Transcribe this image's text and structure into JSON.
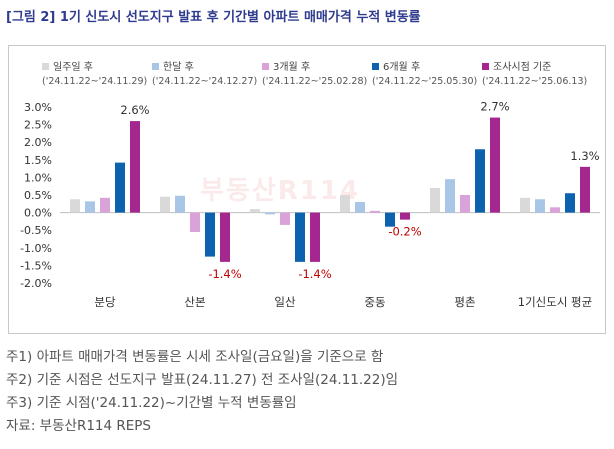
{
  "title": "[그림 2] 1기 신도시 선도지구 발표 후 기간별 아파트 매매가격 누적 변동률",
  "watermark": "부동산R114",
  "chart_data": {
    "type": "bar",
    "categories": [
      "분당",
      "산본",
      "일산",
      "중동",
      "평촌",
      "1기신도시 평균"
    ],
    "series": [
      {
        "name": "일주일 후",
        "period": "('24.11.22~'24.11.29)",
        "color": "#d9d9d9",
        "values": [
          0.38,
          0.45,
          0.1,
          0.5,
          0.7,
          0.42
        ]
      },
      {
        "name": "한달 후",
        "period": "('24.11.22~'24.12.27)",
        "color": "#a9c6e6",
        "values": [
          0.32,
          0.48,
          -0.05,
          0.3,
          0.95,
          0.38
        ]
      },
      {
        "name": "3개월 후",
        "period": "('24.11.22~'25.02.28)",
        "color": "#d9a3d9",
        "values": [
          0.42,
          -0.55,
          -0.35,
          0.05,
          0.5,
          0.15
        ]
      },
      {
        "name": "6개월 후",
        "period": "('24.11.22~'25.05.30)",
        "color": "#0d62b0",
        "values": [
          1.42,
          -1.25,
          -1.4,
          -0.4,
          1.8,
          0.55
        ]
      },
      {
        "name": "조사시점 기준",
        "period": "('24.11.22~'25.06.13)",
        "color": "#a3278f",
        "values": [
          2.6,
          -1.4,
          -1.4,
          -0.2,
          2.7,
          1.3
        ]
      }
    ],
    "data_labels": [
      {
        "category": "분당",
        "series": "조사시점 기준",
        "text": "2.6%"
      },
      {
        "category": "산본",
        "series": "조사시점 기준",
        "text": "-1.4%"
      },
      {
        "category": "일산",
        "series": "조사시점 기준",
        "text": "-1.4%"
      },
      {
        "category": "중동",
        "series": "조사시점 기준",
        "text": "-0.2%"
      },
      {
        "category": "평촌",
        "series": "조사시점 기준",
        "text": "2.7%"
      },
      {
        "category": "1기신도시 평균",
        "series": "조사시점 기준",
        "text": "1.3%"
      }
    ],
    "ylim": [
      -2.0,
      3.0
    ],
    "yticks": [
      3.0,
      2.5,
      2.0,
      1.5,
      1.0,
      0.5,
      0.0,
      -0.5,
      -1.0,
      -1.5,
      -2.0
    ],
    "ytick_labels": [
      "3.0%",
      "2.5%",
      "2.0%",
      "1.5%",
      "1.0%",
      "0.5%",
      "0.0%",
      "-0.5%",
      "-1.0%",
      "-1.5%",
      "-2.0%"
    ],
    "xlabel": "",
    "ylabel": "",
    "grid": false,
    "legend_position": "top",
    "label_colors": {
      "positive": "#333333",
      "negative": "#c00000"
    }
  },
  "notes": [
    "주1) 아파트 매매가격 변동률은 시세 조사일(금요일)을 기준으로 함",
    "주2) 기준 시점은 선도지구 발표(24.11.27) 전 조사일(24.11.22)임",
    "주3) 기준 시점('24.11.22)~기간별 누적 변동률임",
    "자료: 부동산R114 REPS"
  ]
}
